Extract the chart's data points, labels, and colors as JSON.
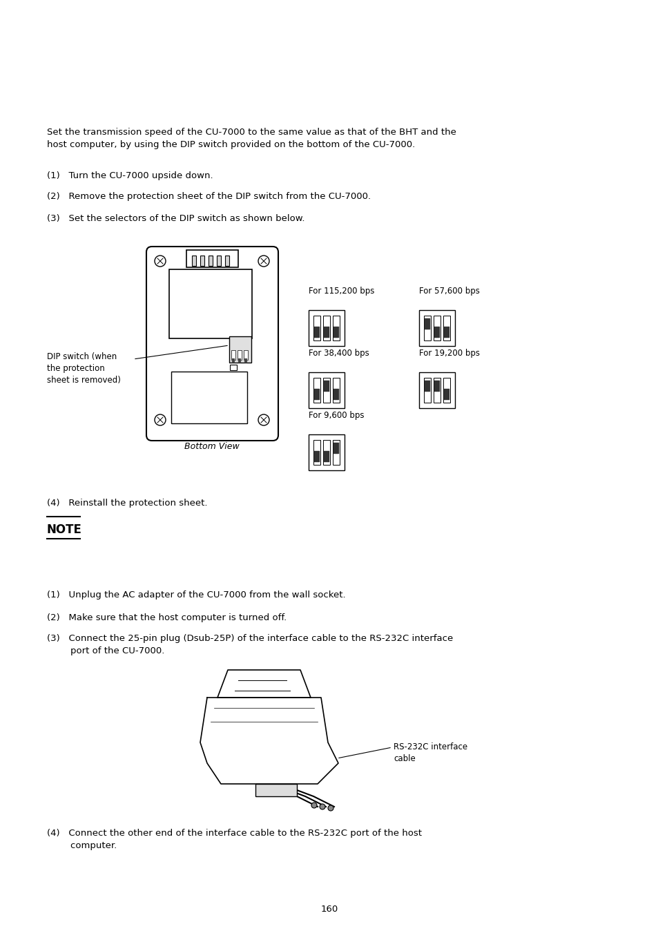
{
  "bg_color": "#ffffff",
  "text_color": "#000000",
  "font_size_body": 9.5,
  "font_size_small": 8.5,
  "page_number": "160",
  "intro_text": "Set the transmission speed of the CU-7000 to the same value as that of the BHT and the\nhost computer, by using the DIP switch provided on the bottom of the CU-7000.",
  "step1": "(1)   Turn the CU-7000 upside down.",
  "step2": "(2)   Remove the protection sheet of the DIP switch from the CU-7000.",
  "step3": "(3)   Set the selectors of the DIP switch as shown below.",
  "step4": "(4)   Reinstall the protection sheet.",
  "step4b": "(4)   Connect the other end of the interface cable to the RS-232C port of the host\n        computer.",
  "dip_label": "DIP switch (when\nthe protection\nsheet is removed)",
  "bottom_view": "Bottom View",
  "note_text": "NOTE",
  "s2_step1": "(1)   Unplug the AC adapter of the CU-7000 from the wall socket.",
  "s2_step2": "(2)   Make sure that the host computer is turned off.",
  "s2_step3": "(3)   Connect the 25-pin plug (Dsub-25P) of the interface cable to the RS-232C interface\n        port of the CU-7000.",
  "rs232c_label": "RS-232C interface\ncable"
}
